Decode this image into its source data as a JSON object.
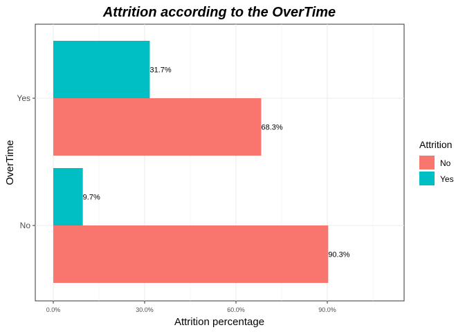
{
  "chart_data": {
    "type": "bar",
    "orientation": "horizontal",
    "title": "Attrition according to the OverTime",
    "xlabel": "Attrition percentage",
    "ylabel": "OverTime",
    "categories": [
      "No",
      "Yes"
    ],
    "xlim": [
      0,
      111
    ],
    "x_ticks": [
      0,
      30,
      60,
      90
    ],
    "x_tick_labels": [
      "0.0%",
      "30.0%",
      "60.0%",
      "90.0%"
    ],
    "grid": true,
    "legend_position": "right",
    "legend_title": "Attrition",
    "series": [
      {
        "name": "No",
        "color": "#F8766D",
        "values": [
          90.3,
          68.3
        ],
        "labels": [
          "90.3%",
          "68.3%"
        ]
      },
      {
        "name": "Yes",
        "color": "#00BFC4",
        "values": [
          9.7,
          31.7
        ],
        "labels": [
          "9.7%",
          "31.7%"
        ]
      }
    ]
  }
}
